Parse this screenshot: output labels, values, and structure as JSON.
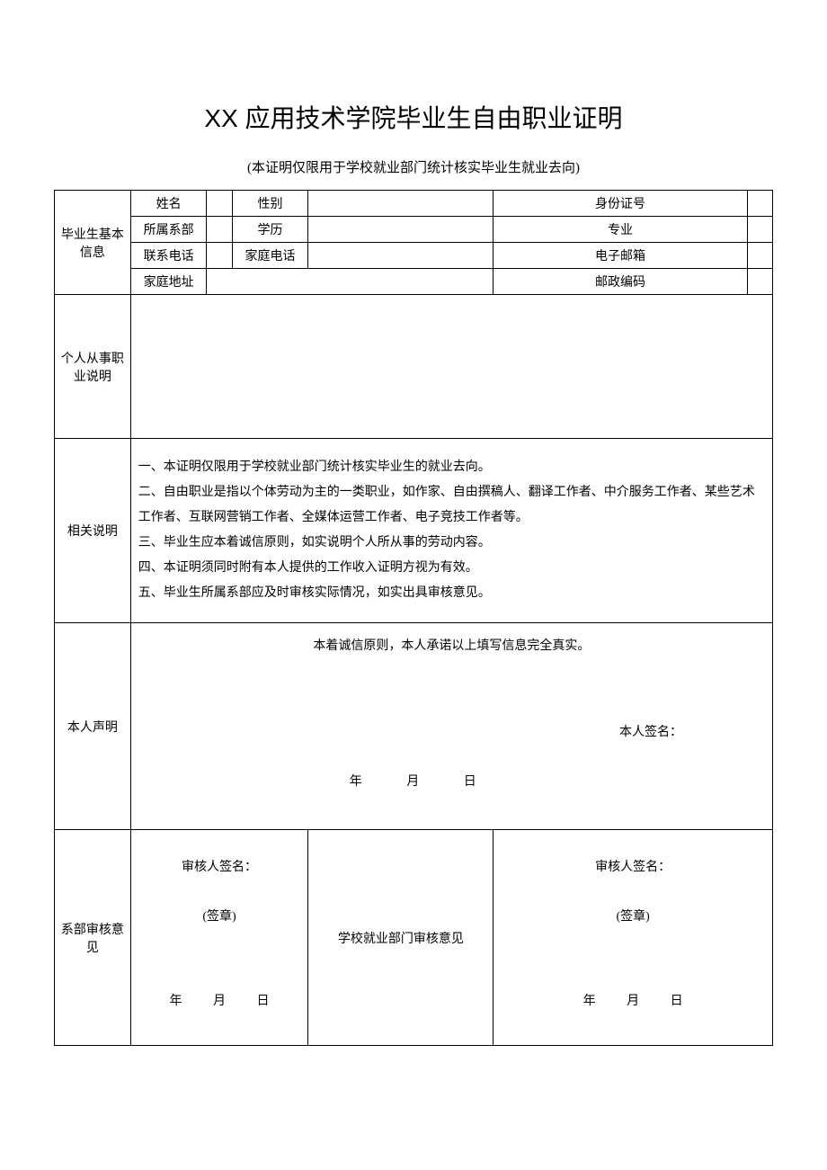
{
  "title": "XX 应用技术学院毕业生自由职业证明",
  "subtitle": "(本证明仅限用于学校就业部门统计核实毕业生就业去向)",
  "sections": {
    "basic_info": "毕业生基本信息",
    "occupation": "个人从事职业说明",
    "notes": "相关说明",
    "declaration": "本人声明",
    "dept_audit": "系部审核意见",
    "school_audit": "学校就业部门审核意见"
  },
  "fields": {
    "name": "姓名",
    "gender": "性别",
    "id_number": "身份证号",
    "department": "所属系部",
    "education": "学历",
    "major": "专业",
    "phone": "联系电话",
    "home_phone": "家庭电话",
    "email": "电子邮箱",
    "address": "家庭地址",
    "postcode": "邮政编码"
  },
  "notes_lines": {
    "line1": "一、本证明仅限用于学校就业部门统计核实毕业生的就业去向。",
    "line2": "二、自由职业是指以个体劳动为主的一类职业，如作家、自由撰稿人、翻译工作者、中介服务工作者、某些艺术工作者、互联网营销工作者、全媒体运营工作者、电子竞技工作者等。",
    "line3": "三、毕业生应本着诚信原则，如实说明个人所从事的劳动内容。",
    "line4": "四、本证明须同时附有本人提供的工作收入证明方视为有效。",
    "line5": "五、毕业生所属系部应及时审核实际情况，如实出具审核意见。"
  },
  "declaration_text": "本着诚信原则，本人承诺以上填写信息完全真实。",
  "signature_label": "本人签名：",
  "auditor_label": "审核人签名：",
  "seal_label": "(签章)",
  "date_labels": {
    "year": "年",
    "month": "月",
    "day": "日"
  },
  "colors": {
    "border": "#000000",
    "background": "#ffffff",
    "text": "#000000"
  },
  "font_sizes": {
    "title": 28,
    "subtitle": 15,
    "body": 14
  }
}
